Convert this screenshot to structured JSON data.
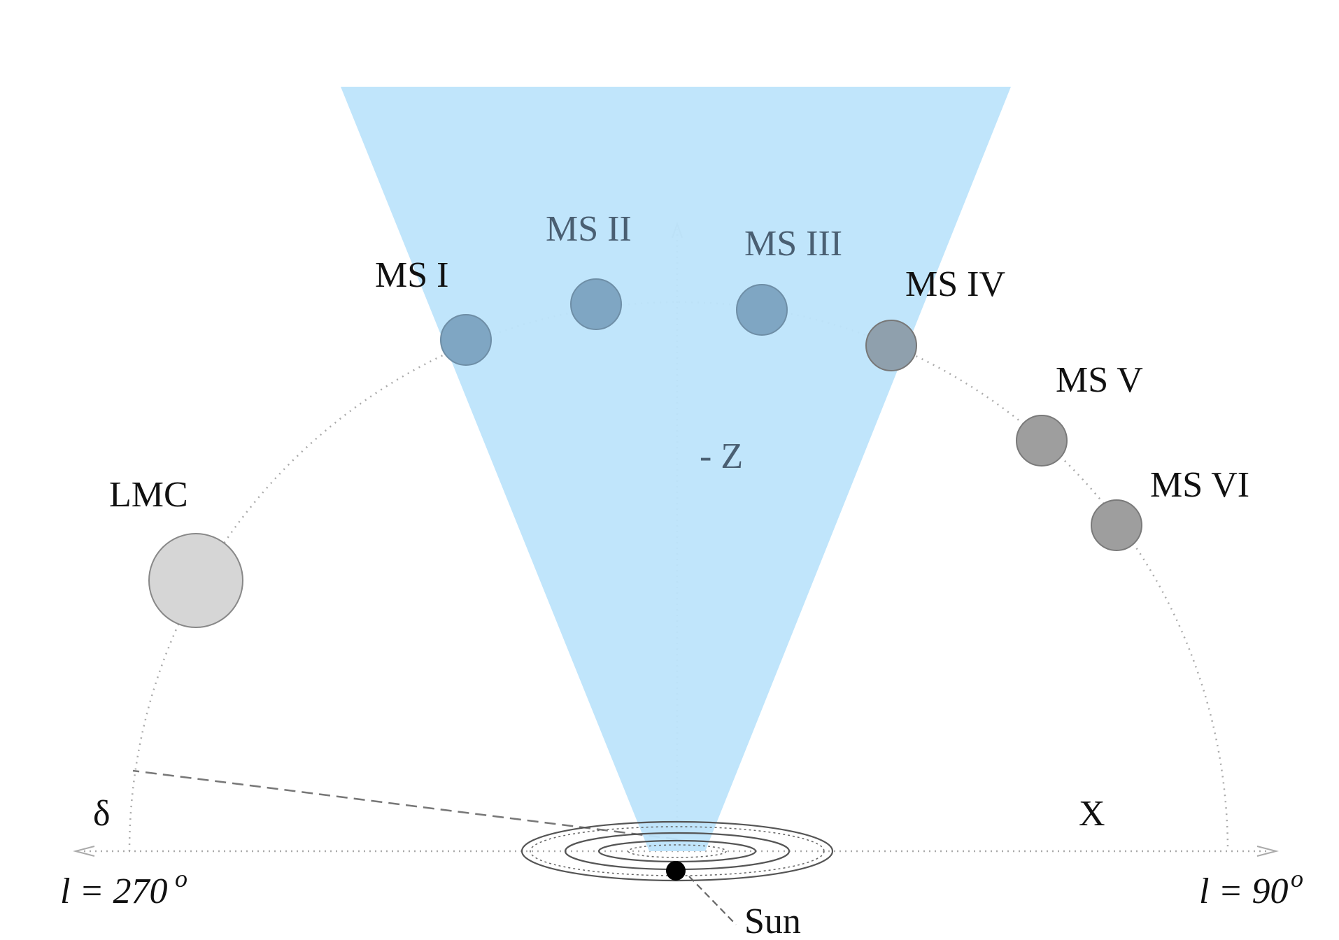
{
  "diagram": {
    "labels": {
      "ms1": "MS I",
      "ms2": "MS II",
      "ms3": "MS III",
      "ms4": "MS IV",
      "ms5": "MS V",
      "ms6": "MS VI",
      "lmc": "LMC",
      "z_axis": "- Z",
      "x_axis": "X",
      "delta": "δ",
      "l_left": "l = 270",
      "l_right": "l = 90",
      "degree": "o",
      "sun": "Sun"
    },
    "colors": {
      "cone": "#bde4fb",
      "cloud_blue": "#7fa6c3",
      "cloud_gray": "#9e9e9e",
      "lmc": "#d6d6d6",
      "sun": "#000000",
      "guide": "#aaaaaa"
    }
  }
}
